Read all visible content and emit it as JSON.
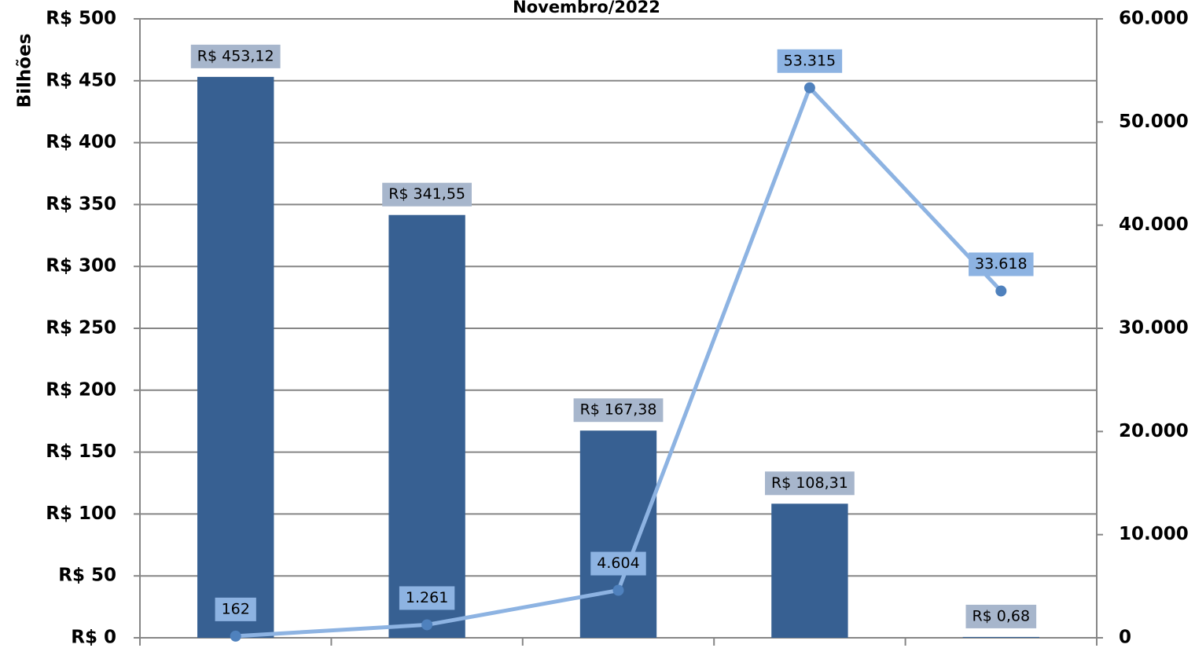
{
  "chart_data": {
    "type": "bar_line",
    "title": "Novembro/2022",
    "y_label": "Bilhões",
    "categories": [
      null,
      null,
      null,
      null,
      null
    ],
    "series": [
      {
        "type": "bar",
        "color": "#376092",
        "label_bg": "#a7b6cc",
        "values": [
          453.12,
          341.55,
          167.38,
          108.31,
          0.68
        ],
        "value_labels": [
          "R$ 453,12",
          "R$ 341,55",
          "R$ 167,38",
          "R$ 108,31",
          "R$ 0,68"
        ]
      },
      {
        "type": "line",
        "axis": "y2",
        "color": "#8db3e2",
        "marker_color": "#4f81bd",
        "label_bg": "#8db3e2",
        "values": [
          162,
          1261,
          4604,
          53315,
          33618
        ],
        "value_labels": [
          "162",
          "1.261",
          "4.604",
          "53.315",
          "33.618"
        ]
      }
    ],
    "ylim": [
      0,
      500
    ],
    "yticks": [
      {
        "value": 0,
        "label": "R$ 0"
      },
      {
        "value": 50,
        "label": "R$ 50"
      },
      {
        "value": 100,
        "label": "R$ 100"
      },
      {
        "value": 150,
        "label": "R$ 150"
      },
      {
        "value": 200,
        "label": "R$ 200"
      },
      {
        "value": 250,
        "label": "R$ 250"
      },
      {
        "value": 300,
        "label": "R$ 300"
      },
      {
        "value": 350,
        "label": "R$ 350"
      },
      {
        "value": 400,
        "label": "R$ 400"
      },
      {
        "value": 450,
        "label": "R$ 450"
      },
      {
        "value": 500,
        "label": "R$ 500"
      }
    ],
    "y2lim": [
      0,
      60000
    ],
    "y2ticks": [
      0,
      {
        "value": 10000,
        "label": "10.000"
      },
      {
        "value": 20000,
        "label": "20.000"
      },
      {
        "value": 30000,
        "label": "30.000"
      },
      {
        "value": 40000,
        "label": "40.000"
      },
      {
        "value": 50000,
        "label": "50.000"
      },
      {
        "value": 60000,
        "label": "60.000"
      }
    ],
    "grid": true
  }
}
